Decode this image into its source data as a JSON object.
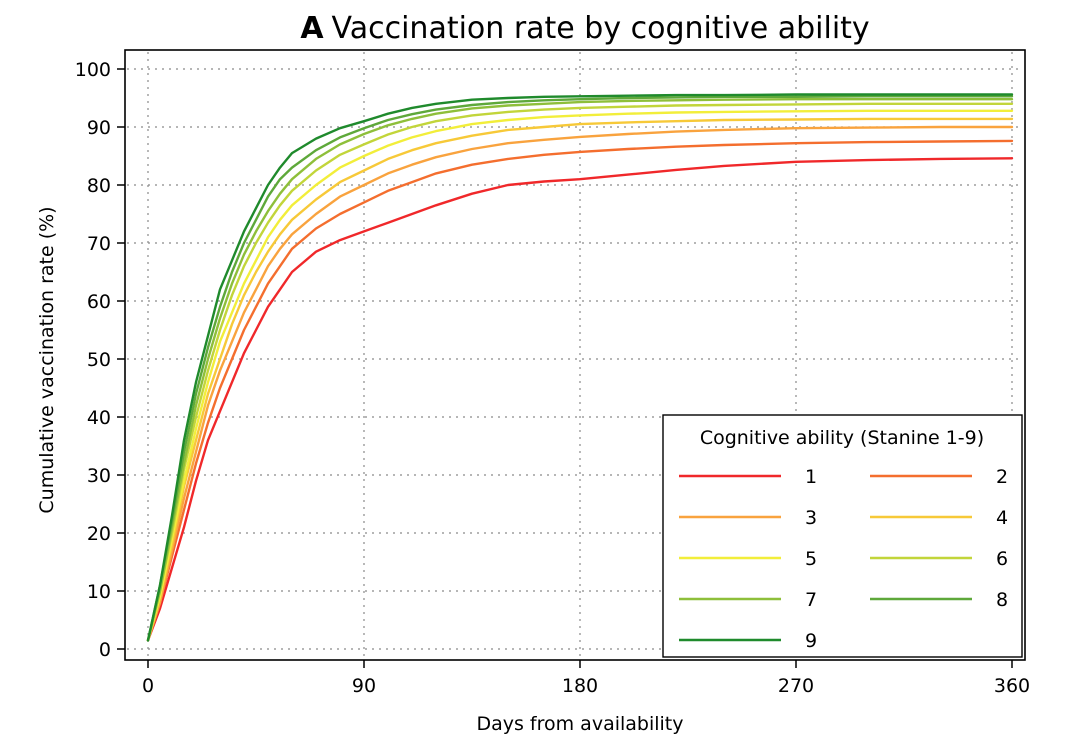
{
  "chart_data": {
    "type": "line",
    "title_prefix": "A",
    "title": "Vaccination rate by cognitive ability",
    "xlabel": "Days from availability",
    "ylabel": "Cumulative vaccination rate (%)",
    "xlim": [
      0,
      360
    ],
    "ylim": [
      0,
      100
    ],
    "xticks": [
      0,
      90,
      180,
      270,
      360
    ],
    "yticks": [
      0,
      10,
      20,
      30,
      40,
      50,
      60,
      70,
      80,
      90,
      100
    ],
    "grid": true,
    "legend": {
      "title": "Cognitive ability (Stanine 1-9)",
      "placement": "bottom-right",
      "columns": 2
    },
    "x": [
      0,
      5,
      10,
      15,
      20,
      25,
      30,
      35,
      40,
      45,
      50,
      55,
      60,
      70,
      80,
      90,
      100,
      110,
      120,
      135,
      150,
      165,
      180,
      200,
      220,
      240,
      270,
      300,
      330,
      360
    ],
    "series": [
      {
        "name": "1",
        "color": "#f0282a",
        "values": [
          1.5,
          7,
          14,
          21,
          29,
          36,
          41,
          46,
          51,
          55,
          59,
          62,
          65,
          68.5,
          70.5,
          72,
          73.5,
          75,
          76.5,
          78.5,
          80,
          80.6,
          81,
          81.8,
          82.6,
          83.3,
          84,
          84.3,
          84.5,
          84.6
        ]
      },
      {
        "name": "2",
        "color": "#f46e2e",
        "values": [
          1.5,
          8,
          16,
          24,
          32,
          39,
          45,
          50,
          55,
          59,
          63,
          66,
          69,
          72.5,
          75,
          77,
          79,
          80.5,
          82,
          83.5,
          84.5,
          85.2,
          85.7,
          86.2,
          86.6,
          86.9,
          87.2,
          87.4,
          87.5,
          87.6
        ]
      },
      {
        "name": "3",
        "color": "#f9a33e",
        "values": [
          1.5,
          8,
          17,
          26,
          34,
          42,
          48,
          53,
          58,
          62,
          66,
          69,
          71.5,
          75,
          78,
          80,
          82,
          83.5,
          84.8,
          86.2,
          87.2,
          87.8,
          88.3,
          88.8,
          89.2,
          89.5,
          89.8,
          89.9,
          90,
          90
        ]
      },
      {
        "name": "4",
        "color": "#f7c938",
        "values": [
          1.5,
          9,
          18,
          28,
          36,
          44,
          50,
          56,
          61,
          65,
          68.5,
          71.5,
          74,
          77.5,
          80.5,
          82.5,
          84.5,
          86,
          87.2,
          88.5,
          89.5,
          90,
          90.5,
          90.8,
          91,
          91.2,
          91.3,
          91.4,
          91.4,
          91.4
        ]
      },
      {
        "name": "5",
        "color": "#f2ee3a",
        "values": [
          1.5,
          9,
          19,
          29,
          38,
          46,
          53,
          58,
          63,
          67,
          71,
          74,
          76.5,
          80,
          83,
          85,
          86.8,
          88.2,
          89.3,
          90.5,
          91.2,
          91.7,
          92,
          92.3,
          92.5,
          92.6,
          92.7,
          92.8,
          92.8,
          92.8
        ]
      },
      {
        "name": "6",
        "color": "#c2d53a",
        "values": [
          1.5,
          10,
          20,
          31,
          40,
          48,
          55,
          61,
          66,
          70,
          73.5,
          76.5,
          79,
          82.5,
          85.2,
          87,
          88.7,
          90,
          91,
          92,
          92.6,
          93,
          93.3,
          93.5,
          93.7,
          93.8,
          93.9,
          94,
          94,
          94
        ]
      },
      {
        "name": "7",
        "color": "#8ebf3a",
        "values": [
          1.5,
          10,
          21,
          32,
          42,
          50,
          57,
          63,
          68,
          72,
          75.5,
          78.5,
          81,
          84.5,
          87,
          88.8,
          90.3,
          91.4,
          92.3,
          93.2,
          93.7,
          94,
          94.3,
          94.5,
          94.6,
          94.7,
          94.8,
          94.8,
          94.8,
          94.8
        ]
      },
      {
        "name": "8",
        "color": "#5ea83a",
        "values": [
          1.5,
          11,
          22,
          34,
          44,
          52,
          59,
          65,
          70,
          74,
          78,
          81,
          83,
          86,
          88.2,
          89.8,
          91.2,
          92.2,
          93,
          93.8,
          94.3,
          94.6,
          94.8,
          95,
          95.1,
          95.2,
          95.2,
          95.3,
          95.3,
          95.3
        ]
      },
      {
        "name": "9",
        "color": "#1f8a2c",
        "values": [
          1.5,
          11,
          23,
          36,
          46,
          54,
          62,
          67,
          72,
          76,
          80,
          83,
          85.5,
          88,
          89.8,
          91,
          92.3,
          93.3,
          94,
          94.7,
          95,
          95.2,
          95.3,
          95.4,
          95.5,
          95.5,
          95.6,
          95.6,
          95.6,
          95.6
        ]
      }
    ]
  }
}
